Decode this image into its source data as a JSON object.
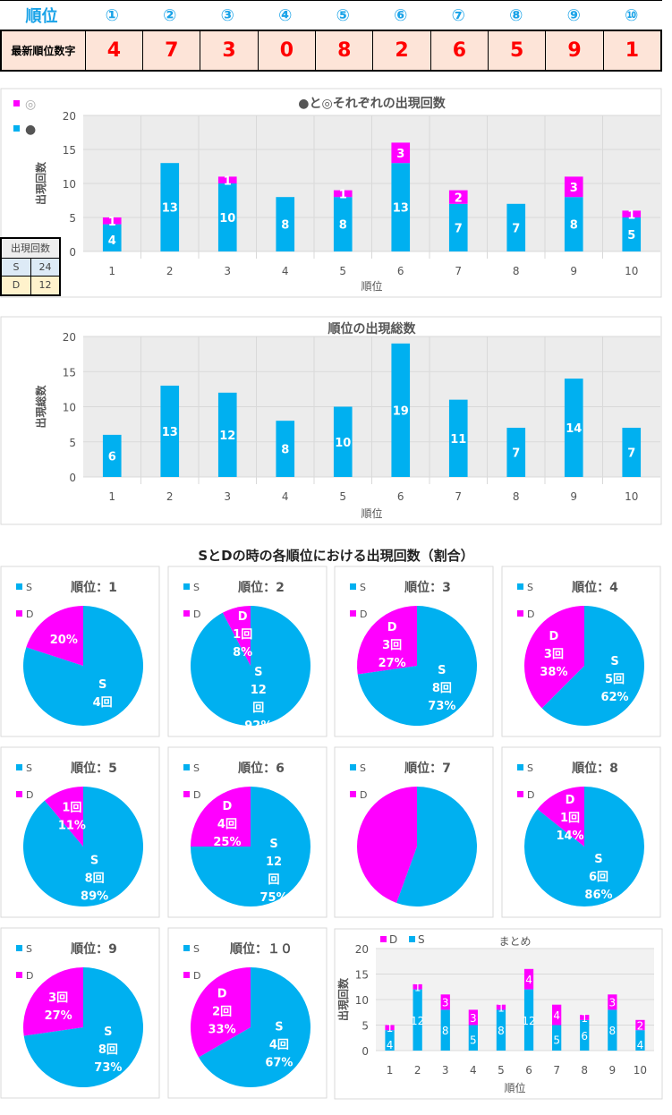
{
  "header": {
    "label": "順位",
    "ranks": [
      "①",
      "②",
      "③",
      "④",
      "⑤",
      "⑥",
      "⑦",
      "⑧",
      "⑨",
      "⑩"
    ]
  },
  "latest": {
    "label": "最新順位数字",
    "digits": [
      "4",
      "7",
      "3",
      "0",
      "8",
      "2",
      "6",
      "5",
      "9",
      "1"
    ]
  },
  "count_table": {
    "title": "出現回数",
    "rows": [
      {
        "k": "S",
        "v": "24"
      },
      {
        "k": "D",
        "v": "12"
      }
    ]
  },
  "section_title": "SとDの時の各順位における出現回数（割合）",
  "colors": {
    "blue": "#00b0f0",
    "magenta": "#ff00ff",
    "plot_bg": "#ececec"
  },
  "chart_data": [
    {
      "type": "bar",
      "stacked": true,
      "title": "●と◎それぞれの出現回数",
      "xlabel": "順位",
      "ylabel": "出現回数",
      "ylim": [
        0,
        20
      ],
      "yticks": [
        "0",
        "5",
        "10",
        "15",
        "20"
      ],
      "categories": [
        "1",
        "2",
        "3",
        "4",
        "5",
        "6",
        "7",
        "8",
        "9",
        "10"
      ],
      "legend": [
        "◎",
        "●"
      ],
      "legend_placement": "top-left",
      "series": [
        {
          "name": "●",
          "color": "#00b0f0",
          "values": [
            4,
            13,
            10,
            8,
            8,
            13,
            7,
            7,
            8,
            5
          ]
        },
        {
          "name": "◎",
          "color": "#ff00ff",
          "values": [
            1,
            0,
            1,
            0,
            1,
            3,
            2,
            0,
            3,
            1
          ]
        }
      ]
    },
    {
      "type": "bar",
      "title": "順位の出現総数",
      "xlabel": "順位",
      "ylabel": "出現総数",
      "ylim": [
        0,
        20
      ],
      "yticks": [
        "0",
        "5",
        "10",
        "15",
        "20"
      ],
      "categories": [
        "1",
        "2",
        "3",
        "4",
        "5",
        "6",
        "7",
        "8",
        "9",
        "10"
      ],
      "series": [
        {
          "color": "#00b0f0",
          "values": [
            6,
            13,
            12,
            8,
            10,
            19,
            11,
            7,
            14,
            7
          ]
        }
      ]
    },
    {
      "type": "pie",
      "title": "順位：1",
      "legend": [
        "S",
        "D"
      ],
      "values": [
        4,
        1
      ],
      "s_label": [
        "S",
        "4回"
      ],
      "d_label": [
        "20%"
      ]
    },
    {
      "type": "pie",
      "title": "順位：2",
      "legend": [
        "S",
        "D"
      ],
      "values": [
        12,
        1
      ],
      "s_label": [
        "S",
        "12",
        "回",
        "92%"
      ],
      "d_label": [
        "D",
        "1回",
        "8%"
      ]
    },
    {
      "type": "pie",
      "title": "順位：3",
      "legend": [
        "S",
        "D"
      ],
      "values": [
        8,
        3
      ],
      "s_label": [
        "S",
        "8回",
        "73%"
      ],
      "d_label": [
        "D",
        "3回",
        "27%"
      ]
    },
    {
      "type": "pie",
      "title": "順位：4",
      "legend": [
        "S",
        "D"
      ],
      "values": [
        5,
        3
      ],
      "s_label": [
        "S",
        "5回",
        "62%"
      ],
      "d_label": [
        "D",
        "3回",
        "38%"
      ]
    },
    {
      "type": "pie",
      "title": "順位：5",
      "legend": [
        "S",
        "D"
      ],
      "values": [
        8,
        1
      ],
      "s_label": [
        "S",
        "8回",
        "89%"
      ],
      "d_label": [
        "1回",
        "11%"
      ]
    },
    {
      "type": "pie",
      "title": "順位：6",
      "legend": [
        "S",
        "D"
      ],
      "values": [
        12,
        4
      ],
      "s_label": [
        "S",
        "12",
        "回",
        "75%"
      ],
      "d_label": [
        "D",
        "4回",
        "25%"
      ]
    },
    {
      "type": "pie",
      "title": "順位：7",
      "legend": [
        "S",
        "D"
      ],
      "values": [
        5,
        4
      ],
      "s_label": [],
      "d_label": []
    },
    {
      "type": "pie",
      "title": "順位：8",
      "legend": [
        "S",
        "D"
      ],
      "values": [
        6,
        1
      ],
      "s_label": [
        "S",
        "6回",
        "86%"
      ],
      "d_label": [
        "D",
        "1回",
        "14%"
      ]
    },
    {
      "type": "pie",
      "title": "順位：9",
      "legend": [
        "S",
        "D"
      ],
      "values": [
        8,
        3
      ],
      "s_label": [
        "S",
        "8回",
        "73%"
      ],
      "d_label": [
        "3回",
        "27%"
      ]
    },
    {
      "type": "pie",
      "title": "順位：１０",
      "legend": [
        "S",
        "D"
      ],
      "values": [
        4,
        2
      ],
      "s_label": [
        "S",
        "4回",
        "67%"
      ],
      "d_label": [
        "D",
        "2回",
        "33%"
      ]
    },
    {
      "type": "bar",
      "stacked": true,
      "title": "まとめ",
      "xlabel": "順位",
      "ylabel": "出現回数",
      "ylim": [
        0,
        20
      ],
      "yticks": [
        "0",
        "5",
        "10",
        "15",
        "20"
      ],
      "categories": [
        "1",
        "2",
        "3",
        "4",
        "5",
        "6",
        "7",
        "8",
        "9",
        "10"
      ],
      "legend": [
        "D",
        "S"
      ],
      "legend_placement": "top-left",
      "series": [
        {
          "name": "S",
          "color": "#00b0f0",
          "values": [
            4,
            12,
            8,
            5,
            8,
            12,
            5,
            6,
            8,
            4
          ]
        },
        {
          "name": "D",
          "color": "#ff00ff",
          "values": [
            1,
            1,
            3,
            3,
            1,
            4,
            4,
            1,
            3,
            2
          ]
        }
      ]
    }
  ]
}
